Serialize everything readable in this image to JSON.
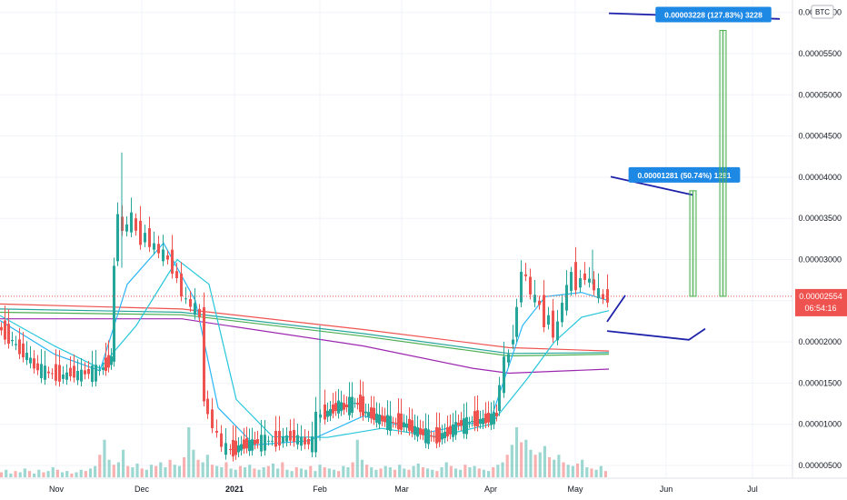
{
  "chart_data": {
    "type": "candlestick",
    "currency_label": "BTC",
    "y_ticks": [
      "0.00000500",
      "0.00001000",
      "0.00001500",
      "0.00002000",
      "0.00002500",
      "0.00003000",
      "0.00003500",
      "0.00004000",
      "0.00004500",
      "0.00005000",
      "0.00005500",
      "0.00006000"
    ],
    "x_ticks": [
      {
        "label": "Nov",
        "bold": false
      },
      {
        "label": "Dec",
        "bold": false
      },
      {
        "label": "2021",
        "bold": true
      },
      {
        "label": "Feb",
        "bold": false
      },
      {
        "label": "Mar",
        "bold": false
      },
      {
        "label": "Apr",
        "bold": false
      },
      {
        "label": "May",
        "bold": false
      },
      {
        "label": "Jun",
        "bold": false
      },
      {
        "label": "Jul",
        "bold": false
      }
    ],
    "last_price": "0.00002554",
    "countdown": "06:54:16",
    "measurements": [
      {
        "text": "0.00001281 (50.74%) 1281",
        "from": 2.554e-05,
        "to": 3.835e-05
      },
      {
        "text": "0.00003228 (127.83%) 3228",
        "from": 2.554e-05,
        "to": 5.782e-05
      }
    ],
    "price_path": [
      [
        0,
        2.18e-05
      ],
      [
        8,
        2.1e-05
      ],
      [
        16,
        2e-05
      ],
      [
        24,
        1.9e-05
      ],
      [
        32,
        1.82e-05
      ],
      [
        40,
        1.7e-05
      ],
      [
        48,
        1.66e-05
      ],
      [
        56,
        1.62e-05
      ],
      [
        64,
        1.6e-05
      ],
      [
        72,
        1.58e-05
      ],
      [
        80,
        1.63e-05
      ],
      [
        88,
        1.6e-05
      ],
      [
        96,
        1.63e-05
      ],
      [
        104,
        1.64e-05
      ],
      [
        112,
        1.66e-05
      ],
      [
        118,
        1.72e-05
      ],
      [
        124,
        1.8e-05
      ],
      [
        128,
        2.9e-05
      ],
      [
        133,
        3.6e-05
      ],
      [
        138,
        3.3e-05
      ],
      [
        143,
        3.45e-05
      ],
      [
        148,
        3.5e-05
      ],
      [
        153,
        3.35e-05
      ],
      [
        158,
        3.25e-05
      ],
      [
        163,
        3.3e-05
      ],
      [
        168,
        3.2e-05
      ],
      [
        173,
        3.15e-05
      ],
      [
        178,
        3.1e-05
      ],
      [
        183,
        3.05e-05
      ],
      [
        188,
        3e-05
      ],
      [
        193,
        2.9e-05
      ],
      [
        198,
        2.75e-05
      ],
      [
        203,
        2.6e-05
      ],
      [
        208,
        2.48e-05
      ],
      [
        213,
        2.45e-05
      ],
      [
        218,
        2.4e-05
      ],
      [
        223,
        2.3e-05
      ],
      [
        227,
        1.35e-05
      ],
      [
        232,
        1.1e-05
      ],
      [
        237,
        1e-05
      ],
      [
        242,
        8.5e-06
      ],
      [
        247,
        7.5e-06
      ],
      [
        252,
        7e-06
      ],
      [
        258,
        6.8e-06
      ],
      [
        264,
        7.2e-06
      ],
      [
        270,
        7.5e-06
      ],
      [
        276,
        7.6e-06
      ],
      [
        282,
        7.8e-06
      ],
      [
        290,
        8e-06
      ],
      [
        298,
        8e-06
      ],
      [
        306,
        8e-06
      ],
      [
        314,
        8.3e-06
      ],
      [
        322,
        8.5e-06
      ],
      [
        330,
        8.2e-06
      ],
      [
        338,
        7.8e-06
      ],
      [
        346,
        7.8e-06
      ],
      [
        351,
        1.08e-05
      ],
      [
        356,
        1.12e-05
      ],
      [
        362,
        1.14e-05
      ],
      [
        368,
        1.18e-05
      ],
      [
        374,
        1.24e-05
      ],
      [
        380,
        1.2e-05
      ],
      [
        386,
        1.26e-05
      ],
      [
        392,
        1.26e-05
      ],
      [
        398,
        1.22e-05
      ],
      [
        404,
        1.13e-05
      ],
      [
        410,
        1.12e-05
      ],
      [
        416,
        1.08e-05
      ],
      [
        422,
        1.06e-05
      ],
      [
        428,
        1.04e-05
      ],
      [
        434,
        1.02e-05
      ],
      [
        440,
        1.01e-05
      ],
      [
        446,
        1e-05
      ],
      [
        452,
        9.7e-06
      ],
      [
        458,
        9.3e-06
      ],
      [
        464,
        9e-06
      ],
      [
        470,
        8.8e-06
      ],
      [
        476,
        8.5e-06
      ],
      [
        482,
        8.4e-06
      ],
      [
        488,
        8.7e-06
      ],
      [
        494,
        9e-06
      ],
      [
        500,
        9.5e-06
      ],
      [
        506,
        1.01e-05
      ],
      [
        512,
        1e-05
      ],
      [
        518,
        1.03e-05
      ],
      [
        524,
        1.05e-05
      ],
      [
        530,
        1.04e-05
      ],
      [
        536,
        1.06e-05
      ],
      [
        542,
        1.08e-05
      ],
      [
        548,
        1.12e-05
      ],
      [
        553,
        1.5e-05
      ],
      [
        558,
        1.75e-05
      ],
      [
        563,
        1.85e-05
      ],
      [
        567,
        2.1e-05
      ],
      [
        572,
        2.4e-05
      ],
      [
        577,
        2.9e-05
      ],
      [
        582,
        2.75e-05
      ],
      [
        587,
        2.6e-05
      ],
      [
        592,
        2.5e-05
      ],
      [
        597,
        2.45e-05
      ],
      [
        602,
        2.25e-05
      ],
      [
        607,
        2.3e-05
      ],
      [
        612,
        2.1e-05
      ],
      [
        617,
        2.2e-05
      ],
      [
        622,
        2.5e-05
      ],
      [
        627,
        2.62e-05
      ],
      [
        632,
        2.85e-05
      ],
      [
        637,
        2.7e-05
      ],
      [
        642,
        2.75e-05
      ],
      [
        647,
        2.8e-05
      ],
      [
        652,
        2.72e-05
      ],
      [
        657,
        2.65e-05
      ],
      [
        662,
        2.58e-05
      ],
      [
        667,
        2.52e-05
      ],
      [
        670,
        2.55e-05
      ]
    ],
    "moving_averages": [
      {
        "color": "#ef5350",
        "points": [
          [
            0,
            2.46e-05
          ],
          [
            200,
            2.4e-05
          ],
          [
            400,
            2.15e-05
          ],
          [
            560,
            1.93e-05
          ],
          [
            670,
            1.89e-05
          ]
        ]
      },
      {
        "color": "#26a69a",
        "points": [
          [
            0,
            2.4e-05
          ],
          [
            200,
            2.36e-05
          ],
          [
            400,
            2.1e-05
          ],
          [
            560,
            1.86e-05
          ],
          [
            670,
            1.87e-05
          ]
        ]
      },
      {
        "color": "#4caf50",
        "points": [
          [
            0,
            2.36e-05
          ],
          [
            200,
            2.33e-05
          ],
          [
            400,
            2.07e-05
          ],
          [
            560,
            1.83e-05
          ],
          [
            670,
            1.85e-05
          ]
        ]
      },
      {
        "color": "#9c27b0",
        "points": [
          [
            0,
            2.28e-05
          ],
          [
            200,
            2.28e-05
          ],
          [
            400,
            1.95e-05
          ],
          [
            520,
            1.68e-05
          ],
          [
            560,
            1.62e-05
          ],
          [
            670,
            1.67e-05
          ]
        ]
      },
      {
        "color": "#26c6da",
        "points": [
          [
            0,
            2.32e-05
          ],
          [
            60,
            1.95e-05
          ],
          [
            110,
            1.68e-05
          ],
          [
            150,
            2.2e-05
          ],
          [
            195,
            3e-05
          ],
          [
            230,
            2.7e-05
          ],
          [
            260,
            1.3e-05
          ],
          [
            300,
            8.5e-06
          ],
          [
            360,
            8.4e-06
          ],
          [
            420,
            9.5e-06
          ],
          [
            480,
            8.5e-06
          ],
          [
            540,
            1e-05
          ],
          [
            580,
            1.55e-05
          ],
          [
            610,
            2e-05
          ],
          [
            640,
            2.3e-05
          ],
          [
            670,
            2.38e-05
          ]
        ]
      },
      {
        "color": "#29b6f6",
        "points": [
          [
            0,
            2.26e-05
          ],
          [
            60,
            1.85e-05
          ],
          [
            110,
            1.65e-05
          ],
          [
            140,
            2.7e-05
          ],
          [
            180,
            3.2e-05
          ],
          [
            215,
            2.5e-05
          ],
          [
            240,
            1.2e-05
          ],
          [
            280,
            7.5e-06
          ],
          [
            340,
            8e-06
          ],
          [
            400,
            1.1e-05
          ],
          [
            470,
            9e-06
          ],
          [
            540,
            1.06e-05
          ],
          [
            575,
            2.2e-05
          ],
          [
            600,
            2.55e-05
          ],
          [
            640,
            2.6e-05
          ],
          [
            670,
            2.5e-05
          ]
        ]
      }
    ],
    "volume_bars": [
      4,
      6,
      3,
      5,
      4,
      7,
      5,
      3,
      6,
      4,
      5,
      8,
      6,
      4,
      5,
      3,
      4,
      6,
      5,
      7,
      9,
      18,
      30,
      14,
      10,
      12,
      22,
      9,
      8,
      11,
      7,
      6,
      10,
      9,
      12,
      8,
      14,
      10,
      9,
      16,
      40,
      22,
      14,
      12,
      18,
      10,
      9,
      8,
      12,
      7,
      6,
      9,
      8,
      10,
      7,
      6,
      8,
      9,
      11,
      7,
      12,
      6,
      5,
      8,
      7,
      6,
      9,
      5,
      10,
      8,
      7,
      6,
      5,
      9,
      8,
      12,
      30,
      14,
      10,
      8,
      6,
      7,
      9,
      8,
      6,
      10,
      7,
      6,
      9,
      11,
      8,
      7,
      6,
      5,
      8,
      12,
      9,
      7,
      6,
      10,
      8,
      9,
      7,
      6,
      5,
      8,
      10,
      12,
      18,
      26,
      40,
      28,
      30,
      22,
      18,
      20,
      25,
      16,
      14,
      18,
      12,
      10,
      9,
      11,
      14,
      8,
      7,
      6,
      9,
      5
    ]
  }
}
